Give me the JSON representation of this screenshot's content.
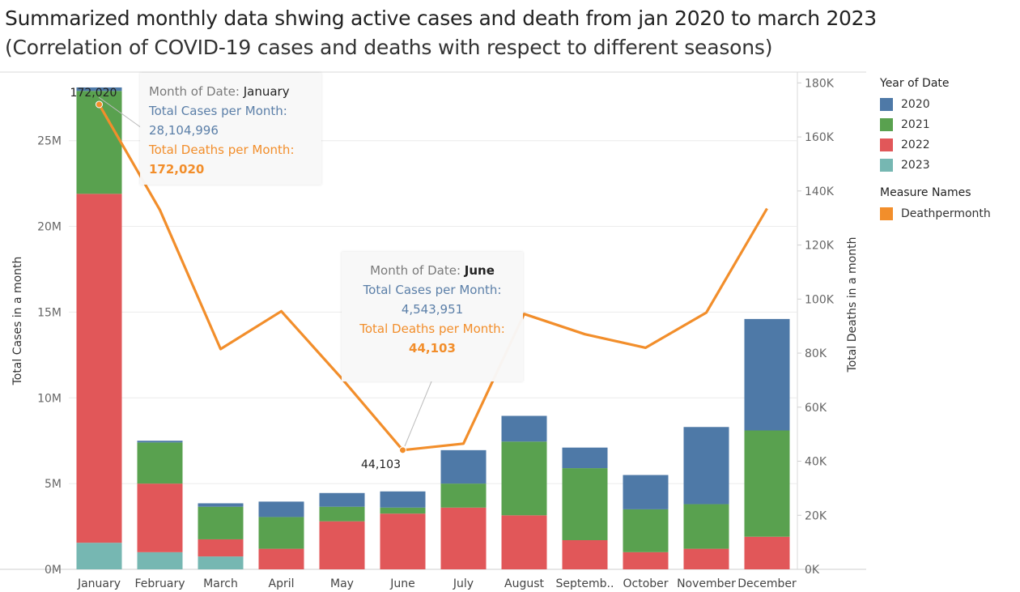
{
  "header": {
    "title": "Summarized monthly data shwing active cases and death from jan 2020 to march 2023",
    "subtitle": "(Correlation of COVID-19 cases and deaths with respect to different seasons)"
  },
  "legend": {
    "year_title": "Year of Date",
    "years": [
      {
        "label": "2020",
        "color": "#4e79a7"
      },
      {
        "label": "2021",
        "color": "#59a14f"
      },
      {
        "label": "2022",
        "color": "#e15759"
      },
      {
        "label": "2023",
        "color": "#76b7b2"
      }
    ],
    "measure_title": "Measure Names",
    "measures": [
      {
        "label": "Deathpermonth",
        "color": "#f28e2b"
      }
    ]
  },
  "chart_data": {
    "type": "bar",
    "categories": [
      "January",
      "February",
      "March",
      "April",
      "May",
      "June",
      "July",
      "August",
      "Septemb..",
      "October",
      "November",
      "December"
    ],
    "stack_order": [
      "2023",
      "2022",
      "2021",
      "2020"
    ],
    "series": [
      {
        "name": "2023",
        "values": [
          1550000,
          1000000,
          750000,
          0,
          0,
          0,
          0,
          0,
          0,
          0,
          0,
          0
        ]
      },
      {
        "name": "2022",
        "values": [
          20350000,
          4000000,
          1000000,
          1200000,
          2800000,
          3250000,
          3600000,
          3150000,
          1700000,
          1000000,
          1200000,
          1900000
        ]
      },
      {
        "name": "2021",
        "values": [
          6000000,
          2400000,
          1900000,
          1850000,
          850000,
          350000,
          1400000,
          4300000,
          4200000,
          2500000,
          2600000,
          6200000
        ]
      },
      {
        "name": "2020",
        "values": [
          204996,
          100000,
          200000,
          900000,
          800000,
          943951,
          1950000,
          1500000,
          1200000,
          2000000,
          4500000,
          6500000
        ]
      }
    ],
    "line_series": {
      "name": "Deathpermonth",
      "values": [
        172020,
        133000,
        81500,
        95500,
        70500,
        44103,
        46500,
        94500,
        87000,
        82000,
        95000,
        133500
      ]
    },
    "ylabel": "Total Cases  in a month",
    "y2label": "Total Deaths in a month",
    "ylim": [
      0,
      29000000
    ],
    "y2lim": [
      0,
      184000
    ],
    "yticks": [
      {
        "v": 0,
        "label": "0M"
      },
      {
        "v": 5000000,
        "label": "5M"
      },
      {
        "v": 10000000,
        "label": "10M"
      },
      {
        "v": 15000000,
        "label": "15M"
      },
      {
        "v": 20000000,
        "label": "20M"
      },
      {
        "v": 25000000,
        "label": "25M"
      }
    ],
    "y2ticks": [
      {
        "v": 0,
        "label": "0K"
      },
      {
        "v": 20000,
        "label": "20K"
      },
      {
        "v": 40000,
        "label": "40K"
      },
      {
        "v": 60000,
        "label": "60K"
      },
      {
        "v": 80000,
        "label": "80K"
      },
      {
        "v": 100000,
        "label": "100K"
      },
      {
        "v": 120000,
        "label": "120K"
      },
      {
        "v": 140000,
        "label": "140K"
      },
      {
        "v": 160000,
        "label": "160K"
      },
      {
        "v": 180000,
        "label": "180K"
      }
    ],
    "point_labels": [
      {
        "index": 0,
        "label": "172,020"
      },
      {
        "index": 5,
        "label": "44,103"
      }
    ],
    "gridlines": true
  },
  "tooltips": [
    {
      "month_label": "Month of Date:",
      "month": "January",
      "cases_label": "Total Cases per Month:",
      "cases": "28,104,996",
      "deaths_label": "Total Deaths per Month:",
      "deaths": "172,020"
    },
    {
      "month_label": "Month of Date:",
      "month": "June",
      "cases_label": "Total Cases per Month:",
      "cases": "4,543,951",
      "deaths_label": "Total Deaths per Month:",
      "deaths": "44,103"
    }
  ]
}
